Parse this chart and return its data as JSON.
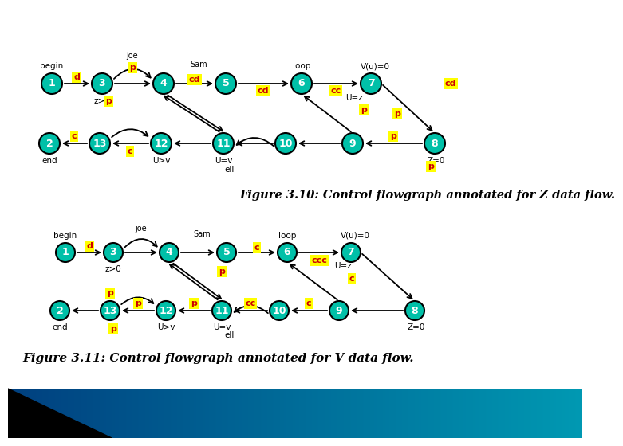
{
  "bg_color": "#ffffff",
  "node_color": "#00c0a8",
  "node_edge_color": "#000000",
  "node_text_color": "#ffffff",
  "label_bg": "#ffff00",
  "label_text": "#cc0000",
  "fig_width": 7.2,
  "fig_height": 5.4,
  "caption1": "Figure 3.10: Control flowgraph annotated for Z data flow.",
  "caption2": "Figure 3.11: Control flowgraph annotated for V data flow."
}
